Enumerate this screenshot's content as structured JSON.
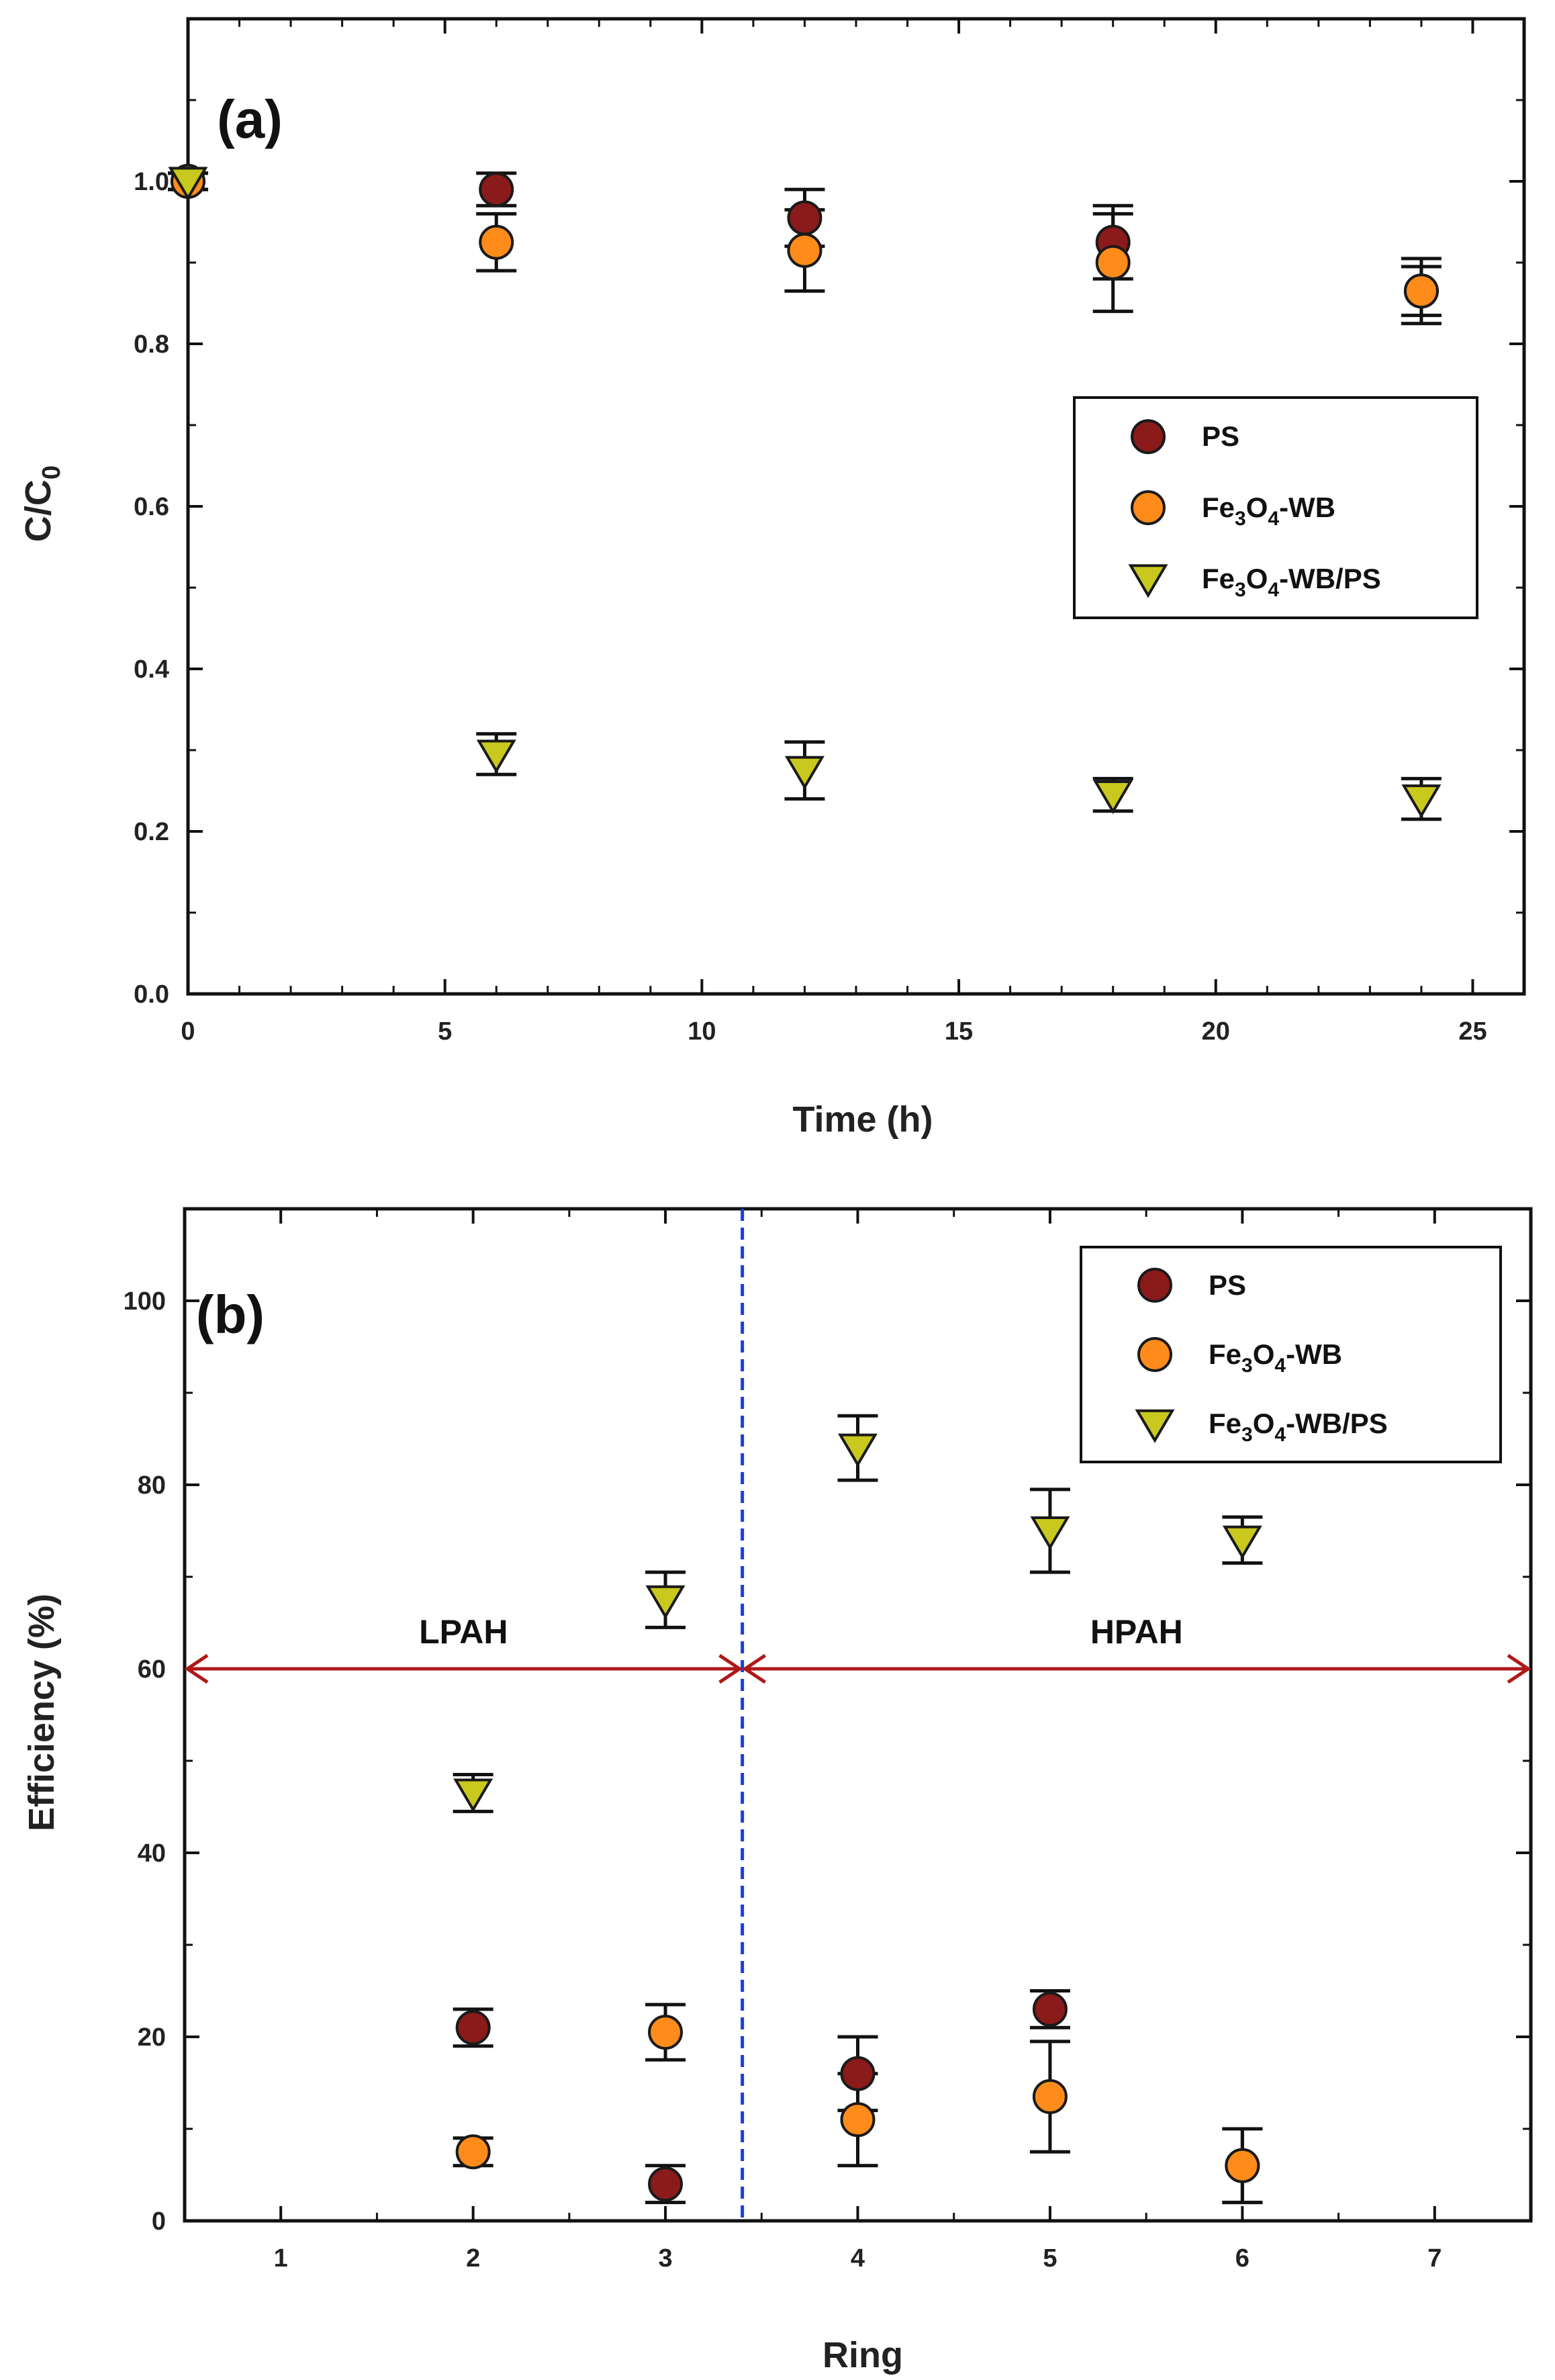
{
  "chart_data": [
    {
      "type": "scatter",
      "panel_label": "(a)",
      "xlabel": "Time (h)",
      "ylabel_main": "C/C",
      "ylabel_sub": "0",
      "xlim": [
        0,
        26
      ],
      "ylim": [
        0,
        1.2
      ],
      "xticks": [
        0,
        5,
        10,
        15,
        20,
        25
      ],
      "yticks": [
        0.0,
        0.2,
        0.4,
        0.6,
        0.8,
        1.0
      ],
      "ytick_labels": [
        "0.0",
        "0.2",
        "0.4",
        "0.6",
        "0.8",
        "1.0"
      ],
      "legend_position": "right-middle",
      "series": [
        {
          "name": "PS",
          "legend_parts": [
            "PS"
          ],
          "marker": "circle",
          "color": "#8b1a1a",
          "x": [
            0,
            6,
            12,
            18,
            24
          ],
          "y": [
            1.0,
            0.99,
            0.955,
            0.925,
            0.865
          ],
          "err": [
            0.01,
            0.02,
            0.035,
            0.045,
            0.03
          ]
        },
        {
          "name": "Fe3O4-WB",
          "legend_parts": [
            "Fe",
            "3",
            "O",
            "4",
            "-WB"
          ],
          "marker": "circle",
          "color": "#ff8c1a",
          "x": [
            0,
            6,
            12,
            18,
            24
          ],
          "y": [
            1.0,
            0.925,
            0.915,
            0.9,
            0.865
          ],
          "err": [
            0.01,
            0.035,
            0.05,
            0.06,
            0.04
          ]
        },
        {
          "name": "Fe3O4-WB/PS",
          "legend_parts": [
            "Fe",
            "3",
            "O",
            "4",
            "-WB/PS"
          ],
          "marker": "triangle-down",
          "color": "#c8c81e",
          "x": [
            0,
            6,
            12,
            18,
            24
          ],
          "y": [
            1.0,
            0.295,
            0.275,
            0.245,
            0.24
          ],
          "err": [
            0.01,
            0.025,
            0.035,
            0.02,
            0.025
          ]
        }
      ]
    },
    {
      "type": "scatter",
      "panel_label": "(b)",
      "xlabel": "Ring",
      "ylabel_main": "Efficiency (%)",
      "xlim": [
        0.5,
        7.5
      ],
      "ylim": [
        0,
        110
      ],
      "xticks": [
        1,
        2,
        3,
        4,
        5,
        6,
        7
      ],
      "yticks": [
        0,
        20,
        40,
        60,
        80,
        100
      ],
      "ytick_labels": [
        "0",
        "20",
        "40",
        "60",
        "80",
        "100"
      ],
      "legend_position": "top-right",
      "annotations": {
        "divider_x": 3.4,
        "arrow_y": 60,
        "left_region": "LPAH",
        "right_region": "HPAH"
      },
      "series": [
        {
          "name": "PS",
          "legend_parts": [
            "PS"
          ],
          "marker": "circle",
          "color": "#8b1a1a",
          "x": [
            2,
            3,
            4,
            5,
            6
          ],
          "y": [
            21,
            4,
            16,
            23,
            6
          ],
          "err": [
            2,
            2,
            4,
            2,
            4
          ]
        },
        {
          "name": "Fe3O4-WB",
          "legend_parts": [
            "Fe",
            "3",
            "O",
            "4",
            "-WB"
          ],
          "marker": "circle",
          "color": "#ff8c1a",
          "x": [
            2,
            3,
            4,
            5,
            6
          ],
          "y": [
            7.5,
            20.5,
            11,
            13.5,
            6
          ],
          "err": [
            1.5,
            3,
            5,
            6,
            4
          ]
        },
        {
          "name": "Fe3O4-WB/PS",
          "legend_parts": [
            "Fe",
            "3",
            "O",
            "4",
            "-WB/PS"
          ],
          "marker": "triangle-down",
          "color": "#c8c81e",
          "x": [
            2,
            3,
            4,
            5,
            6
          ],
          "y": [
            46.5,
            67.5,
            84,
            75,
            74
          ],
          "err": [
            2,
            3,
            3.5,
            4.5,
            2.5
          ]
        }
      ]
    }
  ]
}
